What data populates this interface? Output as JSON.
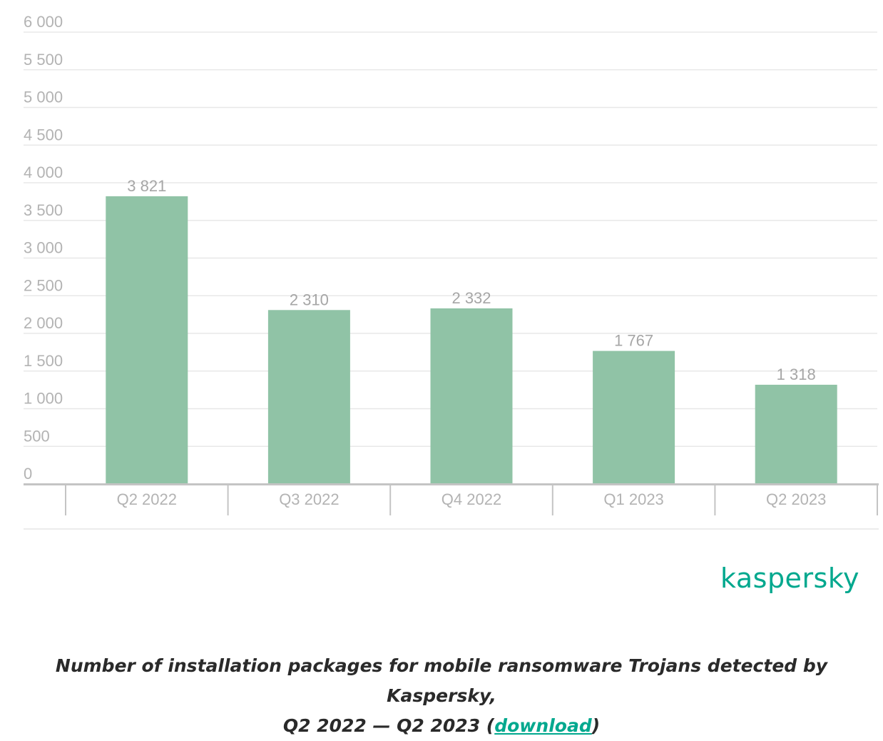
{
  "chart_data": {
    "type": "bar",
    "categories": [
      "Q2 2022",
      "Q3 2022",
      "Q4 2022",
      "Q1 2023",
      "Q2 2023"
    ],
    "values": [
      3821,
      2310,
      2332,
      1767,
      1318
    ],
    "value_labels": [
      "3 821",
      "2 310",
      "2 332",
      "1 767",
      "1 318"
    ],
    "y_ticks": [
      0,
      500,
      1000,
      1500,
      2000,
      2500,
      3000,
      3500,
      4000,
      4500,
      5000,
      5500,
      6000
    ],
    "y_tick_labels": [
      "0",
      "500",
      "1 000",
      "1 500",
      "2 000",
      "2 500",
      "3 000",
      "3 500",
      "4 000",
      "4 500",
      "5 000",
      "5 500",
      "6 000"
    ],
    "ylim": [
      0,
      6000
    ],
    "grid": true,
    "bar_color": "#90c3a6",
    "xlabel": "",
    "ylabel": ""
  },
  "brand": {
    "logo_text": "kaspersky",
    "accent_color": "#00a88e"
  },
  "caption": {
    "line1": "Number of installation packages for mobile ransomware Trojans detected by Kaspersky,",
    "line2_prefix": "Q2 2022 — Q2 2023 (",
    "link_text": "download",
    "line2_suffix": ")"
  }
}
